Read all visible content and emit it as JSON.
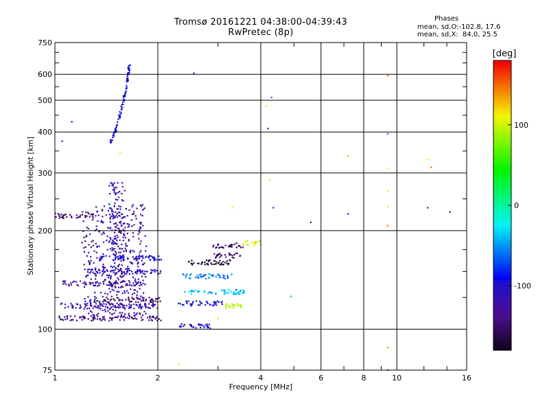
{
  "chart_data": {
    "type": "scatter",
    "title": "Tromsø 20161221 04:38:00-04:39:43",
    "subtitle": "RwPretec (8p)",
    "xlabel": "Frequency [MHz]",
    "ylabel": "Stationary phase Virtual Height [km]",
    "x_scale": "log",
    "y_scale": "log",
    "xlim": [
      1,
      16
    ],
    "ylim": [
      75,
      750
    ],
    "x_ticks": [
      "1",
      "2",
      "4",
      "6",
      "8",
      "10",
      "16"
    ],
    "y_ticks": [
      "75",
      "100",
      "200",
      "300",
      "400",
      "500",
      "600",
      "750"
    ],
    "grid": true,
    "colorbar": {
      "label": "[deg]",
      "range": [
        -180,
        180
      ],
      "ticks": [
        "100",
        "0",
        "-100"
      ]
    },
    "legend": {
      "header": "Phases",
      "line1": "mean, sd,O:-102.8, 17.6",
      "line2": "mean, sd,X:  84.0, 25.5"
    },
    "traces": [
      {
        "f0": 1.03,
        "f1": 2.05,
        "h": 108,
        "phase": -140
      },
      {
        "f0": 1.04,
        "f1": 2.0,
        "h": 118,
        "phase": -110
      },
      {
        "f0": 1.05,
        "f1": 1.75,
        "h": 138,
        "phase": -125
      },
      {
        "f0": 1.3,
        "f1": 2.05,
        "h": 123,
        "phase": -150
      },
      {
        "f0": 1.25,
        "f1": 2.05,
        "h": 150,
        "phase": -105
      },
      {
        "f0": 1.35,
        "f1": 2.05,
        "h": 165,
        "phase": -95
      },
      {
        "f0": 1.0,
        "f1": 1.3,
        "h": 222,
        "phase": -150
      },
      {
        "f0": 2.3,
        "f1": 3.1,
        "h": 120,
        "phase": -95
      },
      {
        "f0": 2.4,
        "f1": 3.6,
        "h": 130,
        "phase": -40
      },
      {
        "f0": 2.35,
        "f1": 3.3,
        "h": 145,
        "phase": -55
      },
      {
        "f0": 2.4,
        "f1": 3.3,
        "h": 160,
        "phase": -165
      },
      {
        "f0": 2.9,
        "f1": 3.5,
        "h": 168,
        "phase": -150
      },
      {
        "f0": 2.9,
        "f1": 3.6,
        "h": 180,
        "phase": -150
      },
      {
        "f0": 3.15,
        "f1": 3.5,
        "h": 118,
        "phase": 95
      },
      {
        "f0": 3.5,
        "f1": 4.05,
        "h": 183,
        "phase": 105
      },
      {
        "f0": 2.3,
        "f1": 2.85,
        "h": 102,
        "phase": -100
      }
    ],
    "o_trace": [
      {
        "f": 1.45,
        "h": 370
      },
      {
        "f": 1.5,
        "h": 400
      },
      {
        "f": 1.54,
        "h": 440
      },
      {
        "f": 1.58,
        "h": 490
      },
      {
        "f": 1.61,
        "h": 540
      },
      {
        "f": 1.64,
        "h": 600
      },
      {
        "f": 1.65,
        "h": 640
      }
    ],
    "isolated_points": [
      {
        "x": 1.05,
        "y": 375,
        "phase": -120
      },
      {
        "x": 1.12,
        "y": 430,
        "phase": -100
      },
      {
        "x": 1.55,
        "y": 345,
        "phase": 110
      },
      {
        "x": 2.55,
        "y": 605,
        "phase": -100
      },
      {
        "x": 3.3,
        "y": 235,
        "phase": 100
      },
      {
        "x": 4.15,
        "y": 480,
        "phase": 120
      },
      {
        "x": 4.25,
        "y": 285,
        "phase": 120
      },
      {
        "x": 4.3,
        "y": 510,
        "phase": -60
      },
      {
        "x": 4.2,
        "y": 410,
        "phase": -110
      },
      {
        "x": 4.35,
        "y": 235,
        "phase": -110
      },
      {
        "x": 5.6,
        "y": 212,
        "phase": -140
      },
      {
        "x": 4.9,
        "y": 126,
        "phase": -40
      },
      {
        "x": 7.2,
        "y": 338,
        "phase": 130
      },
      {
        "x": 7.2,
        "y": 225,
        "phase": -80
      },
      {
        "x": 9.4,
        "y": 595,
        "phase": 150
      },
      {
        "x": 9.4,
        "y": 395,
        "phase": -60
      },
      {
        "x": 9.4,
        "y": 310,
        "phase": 110
      },
      {
        "x": 9.4,
        "y": 265,
        "phase": 100
      },
      {
        "x": 9.4,
        "y": 237,
        "phase": 120
      },
      {
        "x": 9.4,
        "y": 207,
        "phase": 150
      },
      {
        "x": 9.4,
        "y": 88,
        "phase": 140
      },
      {
        "x": 9.4,
        "y": 75,
        "phase": -70
      },
      {
        "x": 12.3,
        "y": 330,
        "phase": 110
      },
      {
        "x": 12.6,
        "y": 312,
        "phase": 150
      },
      {
        "x": 12.3,
        "y": 235,
        "phase": -140
      },
      {
        "x": 14.3,
        "y": 228,
        "phase": -150
      },
      {
        "x": 2.3,
        "y": 78,
        "phase": 100
      },
      {
        "x": 1.45,
        "y": 240,
        "phase": 20
      },
      {
        "x": 3.0,
        "y": 108,
        "phase": 100
      }
    ]
  }
}
